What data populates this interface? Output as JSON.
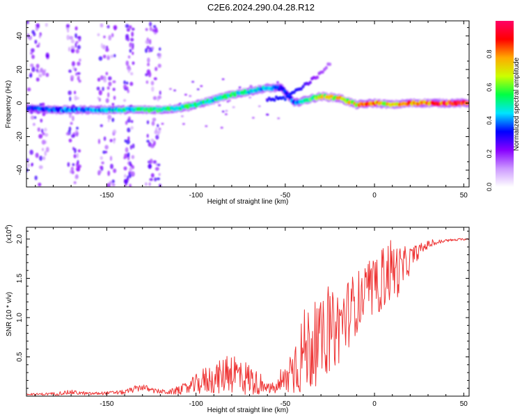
{
  "figure_title": "C2E6.2024.290.04.28.R12",
  "chart_data": [
    {
      "type": "heatmap",
      "xlabel": "Height of straight line (km)",
      "ylabel": "Frequency (Hz)",
      "xlim": [
        -195,
        53
      ],
      "ylim": [
        -50,
        49
      ],
      "xticks": [
        -150,
        -100,
        -50,
        0,
        50
      ],
      "yticks": [
        -40,
        -20,
        0,
        20,
        40
      ],
      "colorbar": {
        "label": "Normalized spectral amplitude",
        "range": [
          0,
          1
        ],
        "ticks": [
          "0.0",
          "0.2",
          "0.4",
          "0.6",
          "0.8"
        ],
        "colors": [
          "#ffffff",
          "#cc99ff",
          "#8800ff",
          "#0000ff",
          "#00e5ff",
          "#00ff44",
          "#ccff00",
          "#ffaa00",
          "#ff0000",
          "#ff0066"
        ]
      },
      "ridge": [
        {
          "x": -195,
          "y": -3,
          "a": 0.35
        },
        {
          "x": -180,
          "y": -4,
          "a": 0.4
        },
        {
          "x": -160,
          "y": -4,
          "a": 0.4
        },
        {
          "x": -140,
          "y": -4,
          "a": 0.5
        },
        {
          "x": -120,
          "y": -4,
          "a": 0.6
        },
        {
          "x": -110,
          "y": -3,
          "a": 0.55
        },
        {
          "x": -100,
          "y": -1,
          "a": 0.55
        },
        {
          "x": -90,
          "y": 2,
          "a": 0.5
        },
        {
          "x": -80,
          "y": 5,
          "a": 0.55
        },
        {
          "x": -70,
          "y": 7,
          "a": 0.5
        },
        {
          "x": -60,
          "y": 9,
          "a": 0.45
        },
        {
          "x": -52,
          "y": 9,
          "a": 0.35
        },
        {
          "x": -45,
          "y": 0,
          "a": 0.4
        },
        {
          "x": -38,
          "y": 2,
          "a": 0.55
        },
        {
          "x": -30,
          "y": 4,
          "a": 0.7
        },
        {
          "x": -20,
          "y": 3,
          "a": 0.75
        },
        {
          "x": -10,
          "y": -1,
          "a": 0.75
        },
        {
          "x": 0,
          "y": 0,
          "a": 0.85
        },
        {
          "x": 10,
          "y": -1,
          "a": 0.7
        },
        {
          "x": 20,
          "y": 0,
          "a": 0.9
        },
        {
          "x": 30,
          "y": 0,
          "a": 0.95
        },
        {
          "x": 40,
          "y": 0,
          "a": 0.95
        },
        {
          "x": 52,
          "y": 0,
          "a": 0.9
        }
      ],
      "branch": [
        {
          "x": -60,
          "y": 2,
          "a": 0.3
        },
        {
          "x": -50,
          "y": 3,
          "a": 0.35
        },
        {
          "x": -40,
          "y": 10,
          "a": 0.3
        },
        {
          "x": -32,
          "y": 16,
          "a": 0.2
        },
        {
          "x": -25,
          "y": 24,
          "a": 0.15
        }
      ],
      "noise_bands": [
        [
          -195,
          -183
        ],
        [
          -172,
          -165
        ],
        [
          -155,
          -145
        ],
        [
          -140,
          -135
        ],
        [
          -128,
          -120
        ]
      ]
    },
    {
      "type": "line",
      "xlabel": "Height of straight line (km)",
      "ylabel": "SNR (10 * v/v)",
      "y_multiplier": "(x10",
      "y_multiplier_exp": "4",
      "y_multiplier_close": ")",
      "xlim": [
        -195,
        53
      ],
      "ylim": [
        0,
        2.15
      ],
      "xticks": [
        -150,
        -100,
        -50,
        0,
        50
      ],
      "yticks": [
        "0.5",
        "1.0",
        "1.5",
        "2.0"
      ],
      "color": "#ee3333",
      "envelope": [
        {
          "x": -195,
          "base": 0.02,
          "amp": 0.01
        },
        {
          "x": -180,
          "base": 0.03,
          "amp": 0.02
        },
        {
          "x": -170,
          "base": 0.05,
          "amp": 0.03
        },
        {
          "x": -160,
          "base": 0.03,
          "amp": 0.02
        },
        {
          "x": -150,
          "base": 0.04,
          "amp": 0.02
        },
        {
          "x": -140,
          "base": 0.05,
          "amp": 0.03
        },
        {
          "x": -130,
          "base": 0.12,
          "amp": 0.05
        },
        {
          "x": -125,
          "base": 0.07,
          "amp": 0.03
        },
        {
          "x": -115,
          "base": 0.05,
          "amp": 0.03
        },
        {
          "x": -105,
          "base": 0.1,
          "amp": 0.08
        },
        {
          "x": -95,
          "base": 0.2,
          "amp": 0.18
        },
        {
          "x": -85,
          "base": 0.25,
          "amp": 0.22
        },
        {
          "x": -82,
          "base": 0.35,
          "amp": 0.3
        },
        {
          "x": -75,
          "base": 0.25,
          "amp": 0.25
        },
        {
          "x": -68,
          "base": 0.2,
          "amp": 0.2
        },
        {
          "x": -62,
          "base": 0.1,
          "amp": 0.06
        },
        {
          "x": -55,
          "base": 0.1,
          "amp": 0.08
        },
        {
          "x": -50,
          "base": 0.2,
          "amp": 0.2
        },
        {
          "x": -45,
          "base": 0.4,
          "amp": 0.4
        },
        {
          "x": -38,
          "base": 0.6,
          "amp": 0.6
        },
        {
          "x": -30,
          "base": 0.7,
          "amp": 0.5
        },
        {
          "x": -20,
          "base": 0.9,
          "amp": 0.5
        },
        {
          "x": -10,
          "base": 1.2,
          "amp": 0.4
        },
        {
          "x": 0,
          "base": 1.35,
          "amp": 0.35
        },
        {
          "x": 8,
          "base": 1.6,
          "amp": 0.45
        },
        {
          "x": 15,
          "base": 1.6,
          "amp": 0.3
        },
        {
          "x": 22,
          "base": 1.8,
          "amp": 0.12
        },
        {
          "x": 30,
          "base": 1.93,
          "amp": 0.05
        },
        {
          "x": 40,
          "base": 1.98,
          "amp": 0.02
        },
        {
          "x": 52,
          "base": 2.0,
          "amp": 0.01
        }
      ]
    }
  ]
}
